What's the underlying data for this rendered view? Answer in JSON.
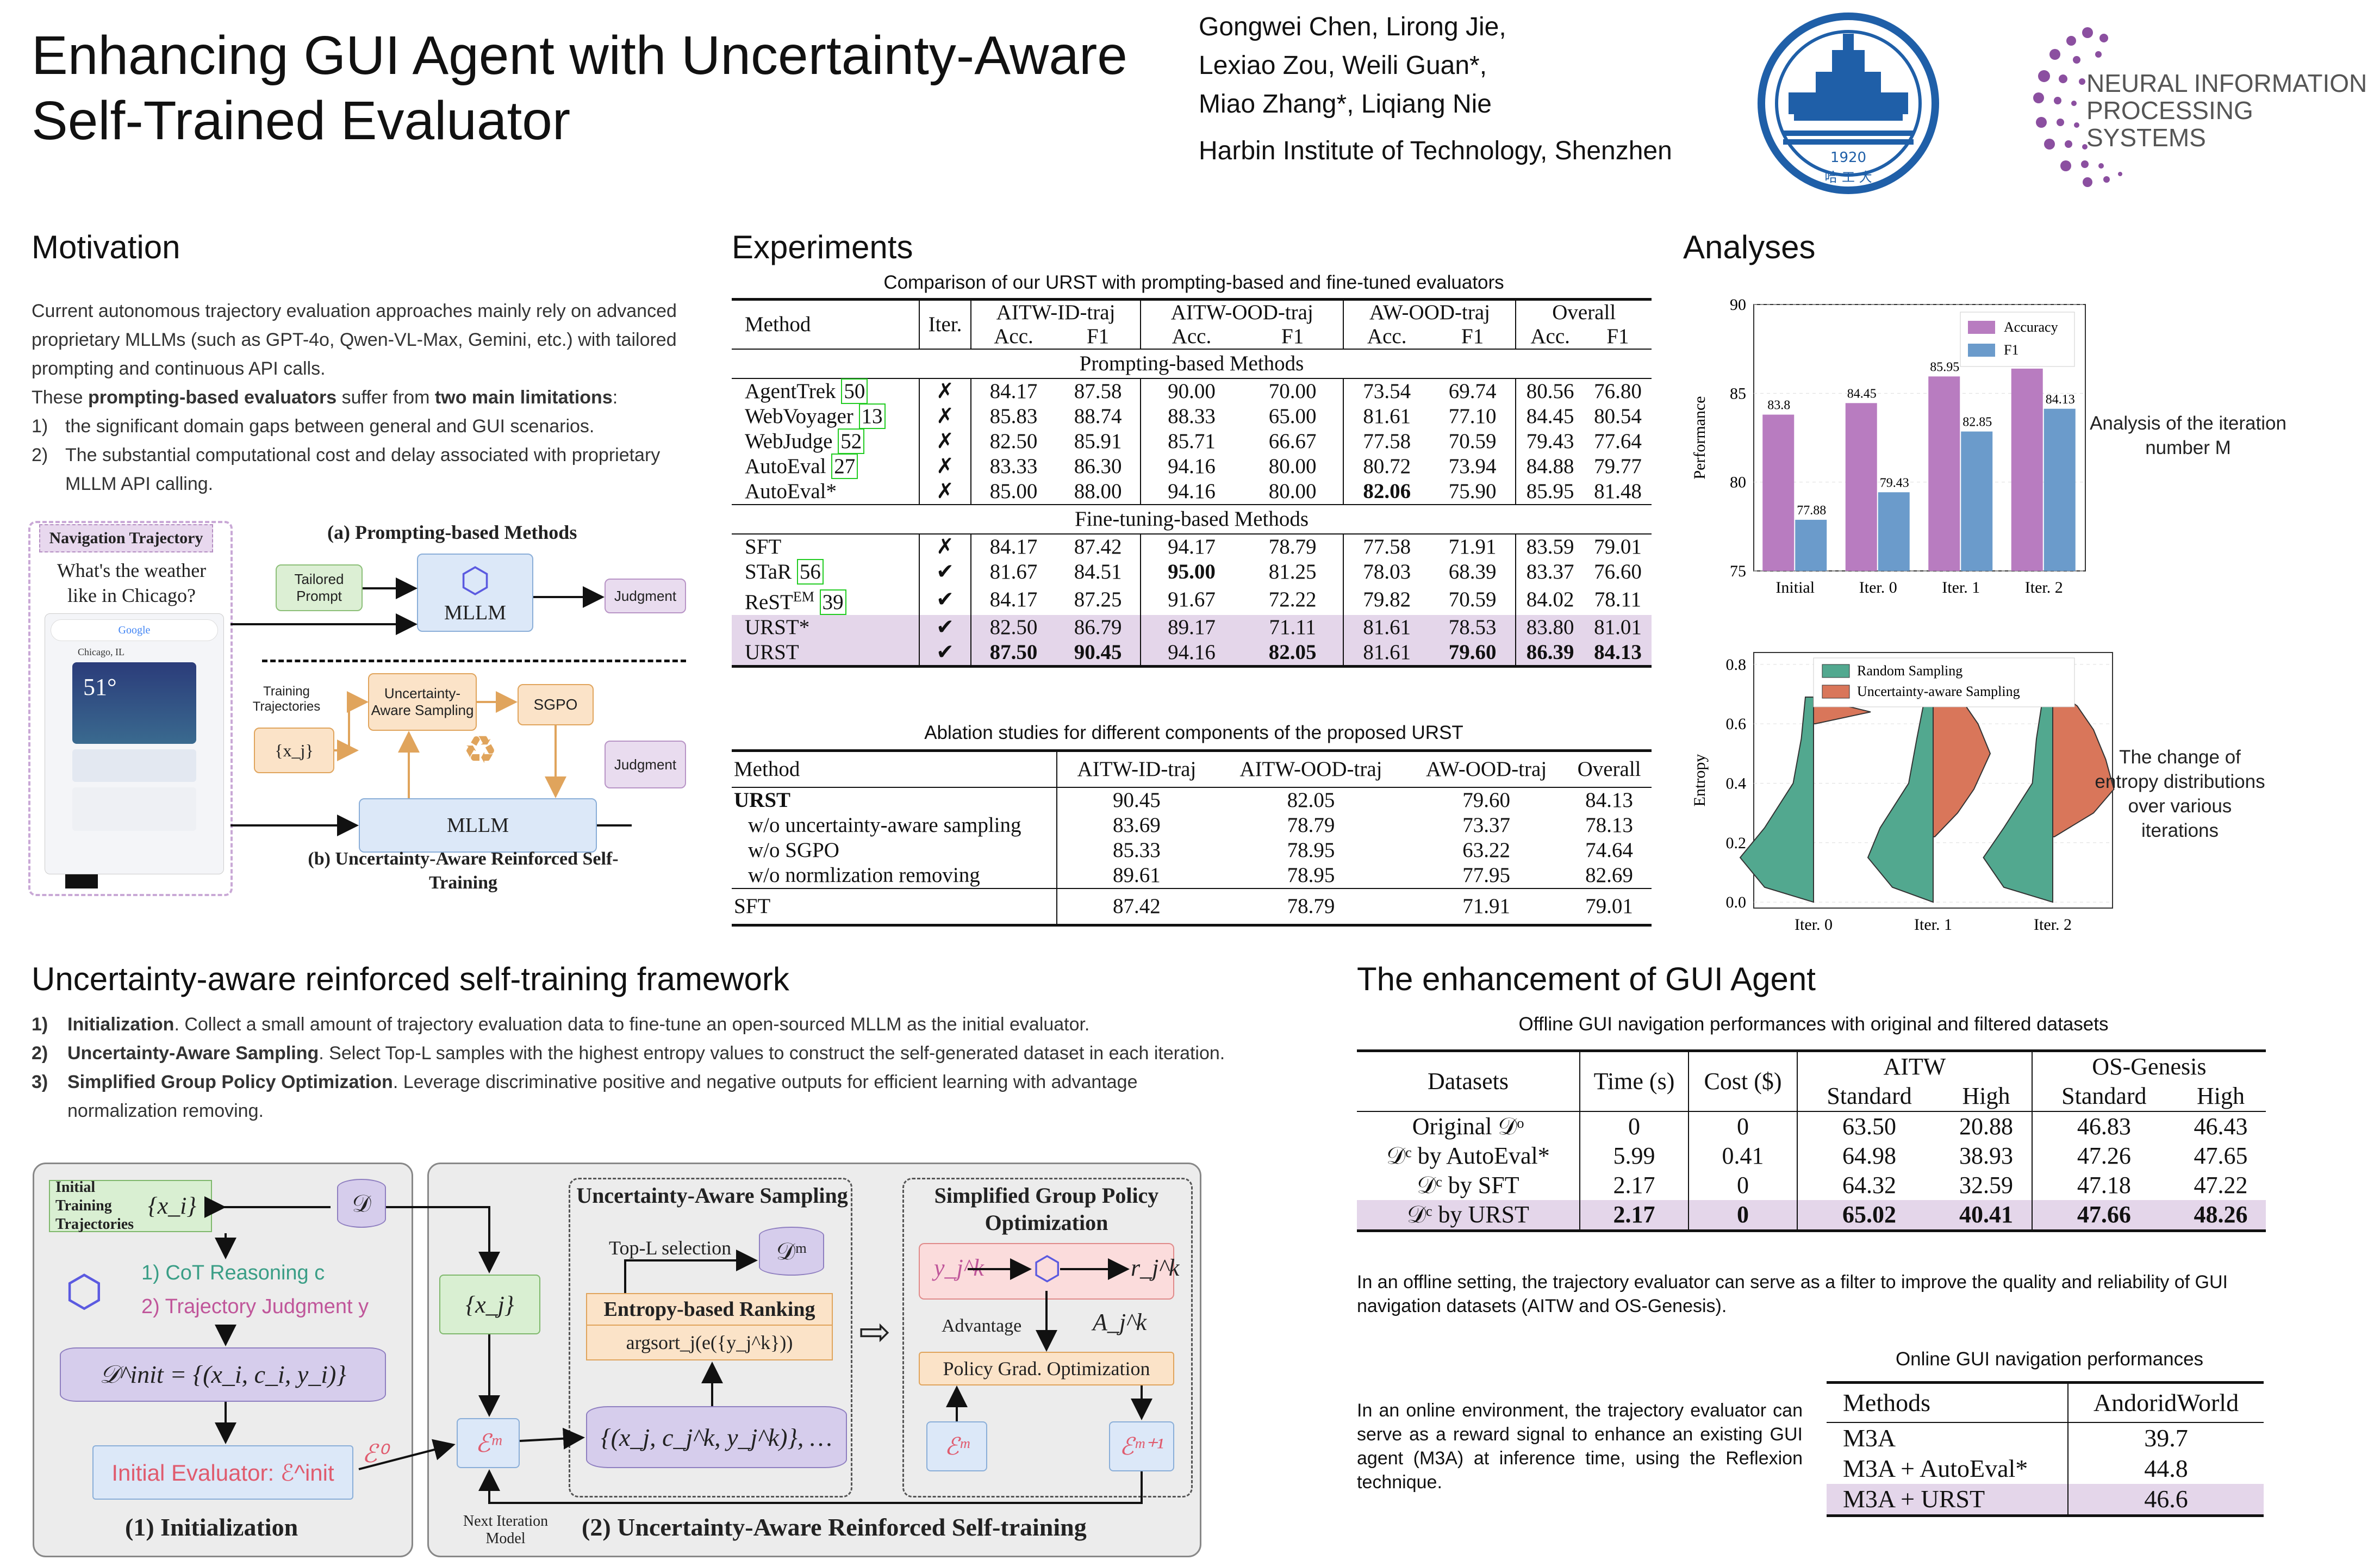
{
  "header": {
    "title_line1": "Enhancing GUI Agent with Uncertainty-Aware",
    "title_line2": "Self-Trained Evaluator",
    "authors": [
      "Gongwei Chen, Lirong Jie,",
      "Lexiao Zou, Weili Guan*,",
      "Miao Zhang*, Liqiang Nie"
    ],
    "affiliation": "Harbin Institute of Technology, Shenzhen",
    "hit_logo_year": "1920",
    "hit_logo_text": "哈 工 大",
    "neurips_line1": "NEURAL INFORMATION",
    "neurips_line2": "PROCESSING SYSTEMS"
  },
  "motivation": {
    "heading": "Motivation",
    "para1": "Current autonomous trajectory evaluation approaches mainly rely on advanced proprietary MLLMs (such as GPT-4o, Qwen-VL-Max, Gemini, etc.) with tailored prompting and continuous API calls.",
    "para2_a": "These ",
    "para2_b": "prompting-based evaluators",
    "para2_c": " suffer from ",
    "para2_d": "two main limitations",
    "para2_e": ":",
    "items": [
      {
        "num": "1)",
        "text": "the significant domain gaps between general and GUI scenarios."
      },
      {
        "num": "2)",
        "text": "The substantial computational cost and delay associated with proprietary MLLM API calling."
      }
    ],
    "fig": {
      "nav_title": "Navigation Trajectory",
      "question": "What's the weather like in Chicago?",
      "phone_search": "Google",
      "phone_city": "Chicago, IL",
      "phone_temp": "51°",
      "part_a": "(a) Prompting-based Methods",
      "tailored_prompt": "Tailored Prompt",
      "mllm": "MLLM",
      "judgment": "Judgment",
      "training_traj": "Training Trajectories",
      "uas": "Uncertainty-Aware Sampling",
      "sgpo": "SGPO",
      "xj": "{x_j}",
      "part_b": "(b) Uncertainty-Aware Reinforced Self-Training"
    }
  },
  "experiments": {
    "heading": "Experiments",
    "table1": {
      "caption": "Comparison of our URST with prompting-based and fine-tuned evaluators",
      "groups": [
        "AITW-ID-traj",
        "AITW-OOD-traj",
        "AW-OOD-traj",
        "Overall"
      ],
      "sub": [
        "Acc.",
        "F1"
      ],
      "method_header": "Method",
      "iter_header": "Iter.",
      "section1": "Prompting-based Methods",
      "section2": "Fine-tuning-based Methods",
      "rows1": [
        {
          "name": "AgentTrek",
          "ref": "50",
          "iter": "✗",
          "vals": [
            "84.17",
            "87.58",
            "90.00",
            "70.00",
            "73.54",
            "69.74",
            "80.56",
            "76.80"
          ]
        },
        {
          "name": "WebVoyager",
          "ref": "13",
          "iter": "✗",
          "vals": [
            "85.83",
            "88.74",
            "88.33",
            "65.00",
            "81.61",
            "77.10",
            "84.45",
            "80.54"
          ]
        },
        {
          "name": "WebJudge",
          "ref": "52",
          "iter": "✗",
          "vals": [
            "82.50",
            "85.91",
            "85.71",
            "66.67",
            "77.58",
            "70.59",
            "79.43",
            "77.64"
          ]
        },
        {
          "name": "AutoEval",
          "ref": "27",
          "iter": "✗",
          "vals": [
            "83.33",
            "86.30",
            "94.16",
            "80.00",
            "80.72",
            "73.94",
            "84.88",
            "79.77"
          ]
        },
        {
          "name": "AutoEval*",
          "ref": "",
          "iter": "✗",
          "vals": [
            "85.00",
            "88.00",
            "94.16",
            "80.00",
            "82.06",
            "75.90",
            "85.95",
            "81.48"
          ]
        }
      ],
      "rows2": [
        {
          "name": "SFT",
          "ref": "",
          "iter": "✗",
          "vals": [
            "84.17",
            "87.42",
            "94.17",
            "78.79",
            "77.58",
            "71.91",
            "83.59",
            "79.01"
          ]
        },
        {
          "name": "STaR",
          "ref": "56",
          "iter": "✔",
          "vals": [
            "81.67",
            "84.51",
            "95.00",
            "81.25",
            "78.03",
            "68.39",
            "83.37",
            "76.60"
          ]
        },
        {
          "name": "ReST",
          "sup": "EM",
          "ref": "39",
          "iter": "✔",
          "vals": [
            "84.17",
            "87.25",
            "91.67",
            "72.22",
            "79.82",
            "70.59",
            "84.02",
            "78.11"
          ]
        },
        {
          "name": "URST*",
          "ref": "",
          "iter": "✔",
          "vals": [
            "82.50",
            "86.79",
            "89.17",
            "71.11",
            "81.61",
            "78.53",
            "83.80",
            "81.01"
          ]
        },
        {
          "name": "URST",
          "ref": "",
          "iter": "✔",
          "vals": [
            "87.50",
            "90.45",
            "94.16",
            "82.05",
            "81.61",
            "79.60",
            "86.39",
            "84.13"
          ]
        }
      ]
    },
    "table2": {
      "caption": "Ablation studies for different components of the proposed URST",
      "headers": [
        "Method",
        "AITW-ID-traj",
        "AITW-OOD-traj",
        "AW-OOD-traj",
        "Overall"
      ],
      "rows": [
        {
          "name": "URST",
          "vals": [
            "90.45",
            "82.05",
            "79.60",
            "84.13"
          ]
        },
        {
          "name": "w/o uncertainty-aware sampling",
          "vals": [
            "83.69",
            "78.79",
            "73.37",
            "78.13"
          ]
        },
        {
          "name": "w/o SGPO",
          "vals": [
            "85.33",
            "78.95",
            "63.22",
            "74.64"
          ]
        },
        {
          "name": "w/o normlization removing",
          "vals": [
            "89.61",
            "78.95",
            "77.95",
            "82.69"
          ]
        }
      ],
      "sft": {
        "name": "SFT",
        "vals": [
          "87.42",
          "78.79",
          "71.91",
          "79.01"
        ]
      }
    }
  },
  "analyses": {
    "heading": "Analyses",
    "caption1": "Analysis of the iteration number M",
    "caption2": "The change of entropy distributions over various iterations"
  },
  "chart_data": [
    {
      "type": "bar",
      "categories": [
        "Initial",
        "Iter. 0",
        "Iter. 1",
        "Iter. 2"
      ],
      "series": [
        {
          "name": "Accuracy",
          "values": [
            83.8,
            84.45,
            85.95,
            86.39
          ],
          "color": "#b87cc0"
        },
        {
          "name": "F1",
          "values": [
            77.88,
            79.43,
            82.85,
            84.13
          ],
          "color": "#6b9bcb"
        }
      ],
      "ylabel": "Performance",
      "ylim": [
        75,
        90
      ],
      "yticks": [
        75,
        80,
        85,
        90
      ],
      "legend": "top-right",
      "grid": true
    },
    {
      "type": "violin",
      "categories": [
        "Iter. 0",
        "Iter. 1",
        "Iter. 2"
      ],
      "series": [
        {
          "name": "Random Sampling",
          "color": "#52a88f"
        },
        {
          "name": "Uncertainty-aware Sampling",
          "color": "#d9765a"
        }
      ],
      "ylabel": "Entropy",
      "ylim": [
        -0.02,
        0.84
      ],
      "yticks": [
        "0.0",
        "0.2",
        "0.4",
        "0.6",
        "0.8"
      ],
      "legend": "top-center",
      "grid": true
    }
  ],
  "framework": {
    "heading": "Uncertainty-aware reinforced self-training framework",
    "steps": [
      {
        "num": "1)",
        "title": "Initialization",
        "text": ". Collect a small amount of trajectory evaluation data to fine-tune an open-sourced MLLM as the initial evaluator."
      },
      {
        "num": "2)",
        "title": "Uncertainty-Aware Sampling",
        "text": ". Select Top-L samples with the highest entropy values to construct the self-generated dataset in each iteration."
      },
      {
        "num": "3)",
        "title": "Simplified Group Policy Optimization",
        "text": ". Leverage discriminative positive and negative outputs for efficient learning with advantage normalization removing."
      }
    ],
    "fig": {
      "init_traj": "Initial Training Trajectories",
      "xi_set": "{x_i}",
      "D": "𝒟",
      "cot": "1) CoT Reasoning c",
      "traj_judg": "2) Trajectory Judgment y",
      "dinit": "𝒟^init = {(x_i, c_i, y_i)}",
      "init_eval": "Initial Evaluator: ℰ^init",
      "e0": "ℰ⁰",
      "part1": "(1) Initialization",
      "xj_set": "{x_j}",
      "em": "ℰᵐ",
      "uas_title": "Uncertainty-Aware Sampling",
      "topl": "Top-L selection",
      "dm": "𝒟ᵐ",
      "ebr": "Entropy-based Ranking",
      "argsort": "argsort_j(e({y_j^k}))",
      "samples": "{(x_j, c_j^k, y_j^k)}, …",
      "sgpo_title": "Simplified Group Policy Optimization",
      "yjk": "y_j^k",
      "rjk": "r_j^k",
      "advantage": "Advantage",
      "ajk": "A_j^k",
      "pgo": "Policy Grad. Optimization",
      "em1": "ℰᵐ⁺¹",
      "next_iter": "Next Iteration Model",
      "part2": "(2) Uncertainty-Aware Reinforced Self-training"
    }
  },
  "enhancement": {
    "heading": "The enhancement of GUI Agent",
    "table3": {
      "caption": "Offline GUI navigation performances with original and filtered datasets",
      "h_datasets": "Datasets",
      "h_time": "Time (s)",
      "h_cost": "Cost ($)",
      "h_aitw": "AITW",
      "h_os": "OS-Genesis",
      "h_standard": "Standard",
      "h_high": "High",
      "rows": [
        {
          "name": "Original 𝒟ᵒ",
          "vals": [
            "0",
            "0",
            "63.50",
            "20.88",
            "46.83",
            "46.43"
          ]
        },
        {
          "name": "𝒟ᶜ by AutoEval*",
          "vals": [
            "5.99",
            "0.41",
            "64.98",
            "38.93",
            "47.26",
            "47.65"
          ]
        },
        {
          "name": "𝒟ᶜ by SFT",
          "vals": [
            "2.17",
            "0",
            "64.32",
            "32.59",
            "47.18",
            "47.22"
          ]
        },
        {
          "name": "𝒟ᶜ by URST",
          "vals": [
            "2.17",
            "0",
            "65.02",
            "40.41",
            "47.66",
            "48.26"
          ]
        }
      ]
    },
    "offline_note": "In an offline setting, the trajectory evaluator can serve as a filter to improve the quality and reliability of GUI navigation datasets (AITW and OS-Genesis).",
    "table4": {
      "caption": "Online GUI navigation performances",
      "h_methods": "Methods",
      "h_aw": "AndoridWorld",
      "rows": [
        {
          "name": "M3A",
          "val": "39.7"
        },
        {
          "name": "M3A + AutoEval*",
          "val": "44.8"
        },
        {
          "name": "M3A + URST",
          "val": "46.6"
        }
      ]
    },
    "online_note": "In an online environment, the trajectory evaluator can serve as a reward signal to enhance an existing GUI agent (M3A) at inference time, using the Reflexion technique."
  }
}
